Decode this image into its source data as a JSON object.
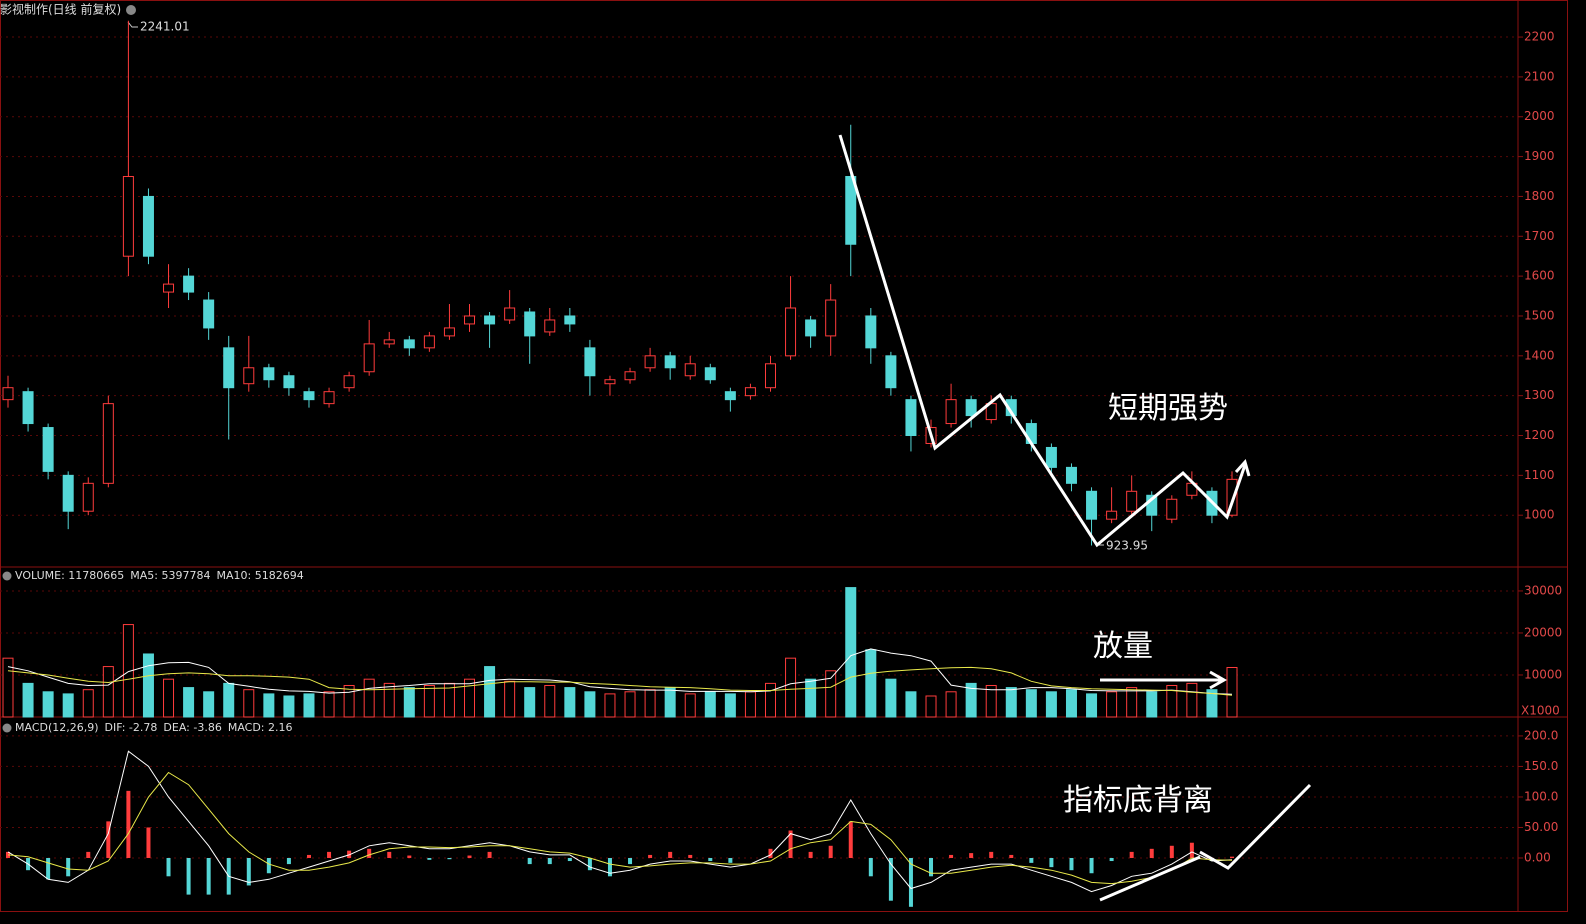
{
  "chart_data": [
    {
      "type": "candlestick",
      "title": "影视制作(日线 前复权)",
      "annotation": "短期强势",
      "up_color": "#ff3c3c",
      "down_color": "#54d6d6",
      "open": [
        1290,
        1310,
        1220,
        1100,
        1010,
        1080,
        1650,
        1800,
        1560,
        1600,
        1540,
        1420,
        1330,
        1370,
        1350,
        1310,
        1280,
        1320,
        1360,
        1430,
        1440,
        1420,
        1450,
        1480,
        1500,
        1490,
        1510,
        1460,
        1500,
        1420,
        1330,
        1340,
        1370,
        1400,
        1350,
        1370,
        1310,
        1300,
        1320,
        1400,
        1490,
        1450,
        1850,
        1500,
        1400,
        1290,
        1180,
        1230,
        1290,
        1240,
        1290,
        1230,
        1170,
        1120,
        1060,
        990,
        1010,
        1050,
        990,
        1050,
        1060,
        1000
      ],
      "high": [
        1350,
        1320,
        1230,
        1110,
        1095,
        1300,
        2241.01,
        1820,
        1630,
        1620,
        1560,
        1450,
        1450,
        1380,
        1360,
        1320,
        1320,
        1360,
        1490,
        1460,
        1450,
        1460,
        1530,
        1530,
        1510,
        1565,
        1520,
        1520,
        1520,
        1440,
        1350,
        1370,
        1420,
        1410,
        1400,
        1380,
        1320,
        1330,
        1400,
        1600,
        1500,
        1580,
        1980,
        1520,
        1410,
        1300,
        1240,
        1330,
        1300,
        1300,
        1300,
        1240,
        1180,
        1130,
        1070,
        1070,
        1100,
        1060,
        1050,
        1110,
        1070,
        1110
      ],
      "low": [
        1270,
        1210,
        1090,
        965,
        1000,
        1070,
        1600,
        1630,
        1520,
        1540,
        1440,
        1190,
        1310,
        1320,
        1300,
        1270,
        1270,
        1310,
        1350,
        1420,
        1400,
        1410,
        1440,
        1460,
        1420,
        1480,
        1380,
        1450,
        1460,
        1300,
        1300,
        1330,
        1360,
        1340,
        1340,
        1330,
        1260,
        1290,
        1310,
        1390,
        1420,
        1400,
        1600,
        1380,
        1300,
        1160,
        1170,
        1220,
        1220,
        1230,
        1230,
        1160,
        1100,
        1060,
        923.95,
        980,
        1000,
        960,
        980,
        1040,
        980,
        995
      ],
      "close": [
        1320,
        1230,
        1110,
        1010,
        1080,
        1280,
        1850,
        1650,
        1580,
        1560,
        1470,
        1320,
        1370,
        1340,
        1320,
        1290,
        1310,
        1350,
        1430,
        1440,
        1420,
        1450,
        1470,
        1500,
        1480,
        1520,
        1450,
        1490,
        1480,
        1350,
        1340,
        1360,
        1400,
        1370,
        1380,
        1340,
        1290,
        1320,
        1380,
        1520,
        1450,
        1540,
        1680,
        1420,
        1320,
        1200,
        1220,
        1290,
        1250,
        1280,
        1250,
        1180,
        1120,
        1080,
        990,
        1010,
        1060,
        1000,
        1040,
        1080,
        1000,
        1090
      ],
      "ylim": [
        870,
        2293
      ],
      "yticks": [
        1000,
        1100,
        1200,
        1300,
        1400,
        1500,
        1600,
        1700,
        1800,
        1900,
        2000,
        2100,
        2200
      ],
      "grid": true
    },
    {
      "type": "volume",
      "annotation": "放量",
      "unit_label": "X1000",
      "legend": [
        {
          "text": "VOLUME: 11780665",
          "color": "#ffffff"
        },
        {
          "text": "MA5: 5397784",
          "color": "#ffffff"
        },
        {
          "text": "MA10: 5182694",
          "color": "#e8e84a"
        }
      ],
      "values": [
        14000,
        8000,
        6000,
        5500,
        6500,
        12000,
        22000,
        15000,
        9000,
        7000,
        6000,
        8000,
        6500,
        5500,
        5000,
        5500,
        6000,
        7500,
        9000,
        8000,
        7000,
        7500,
        8000,
        9000,
        12000,
        8500,
        7000,
        7500,
        7000,
        6000,
        5500,
        6000,
        6500,
        7000,
        5500,
        6000,
        5500,
        6000,
        8000,
        14000,
        9000,
        11000,
        30800,
        16000,
        9000,
        6000,
        5000,
        6000,
        8000,
        7500,
        7000,
        6500,
        6000,
        6500,
        5500,
        6000,
        7000,
        6000,
        7500,
        8000,
        6500,
        11780.665
      ],
      "ma5": [
        12000,
        11000,
        9500,
        8000,
        7500,
        7600,
        10800,
        12200,
        12900,
        13000,
        11800,
        8000,
        7300,
        6600,
        6200,
        6100,
        5700,
        5900,
        6800,
        7200,
        7500,
        7900,
        7900,
        7900,
        8700,
        9000,
        8900,
        8800,
        8400,
        7200,
        6800,
        6500,
        6400,
        6400,
        6100,
        6100,
        6100,
        6000,
        6200,
        7900,
        8500,
        9200,
        14600,
        16200,
        15200,
        14600,
        13300,
        7600,
        6800,
        6500,
        6500,
        7000,
        7000,
        6700,
        6300,
        6200,
        6200,
        6200,
        6400,
        6000,
        5600,
        5397.784
      ],
      "ma10": [
        11000,
        10500,
        10000,
        9200,
        8500,
        8200,
        9000,
        9800,
        10300,
        10500,
        10300,
        9800,
        9800,
        9700,
        9500,
        9000,
        7000,
        6600,
        6500,
        6600,
        6700,
        6800,
        6900,
        7400,
        7900,
        8400,
        8400,
        8300,
        8300,
        8000,
        7800,
        7500,
        7200,
        7100,
        7000,
        6700,
        6400,
        6300,
        6300,
        6600,
        6800,
        7100,
        9500,
        10400,
        10900,
        11200,
        11500,
        11700,
        11800,
        11500,
        10500,
        8500,
        7400,
        7000,
        6700,
        6600,
        6500,
        6400,
        6300,
        5900,
        5600,
        5182.694
      ],
      "ma5_color": "#ffffff",
      "ma10_color": "#e8e84a",
      "ylim": [
        0,
        35700
      ],
      "yticks": [
        10000,
        20000,
        30000
      ],
      "grid": true
    },
    {
      "type": "macd",
      "annotation": "指标底背离",
      "legend": [
        {
          "text": "MACD(12,26,9)",
          "color": "#ffffff"
        },
        {
          "text": "DIF: -2.78",
          "color": "#ffffff"
        },
        {
          "text": "DEA: -3.86",
          "color": "#e8e84a"
        },
        {
          "text": "MACD: 2.16",
          "color": "#e040e0"
        }
      ],
      "dif": [
        10,
        -10,
        -35,
        -40,
        -20,
        40,
        175,
        150,
        100,
        60,
        20,
        -30,
        -40,
        -35,
        -25,
        -15,
        -5,
        5,
        20,
        25,
        20,
        15,
        15,
        20,
        25,
        20,
        10,
        5,
        5,
        -15,
        -25,
        -20,
        -10,
        -5,
        -5,
        -10,
        -15,
        -10,
        5,
        40,
        30,
        40,
        95,
        40,
        -10,
        -50,
        -40,
        -20,
        -15,
        -10,
        -10,
        -20,
        -30,
        -40,
        -55,
        -45,
        -30,
        -25,
        -10,
        10,
        -5,
        -2.78
      ],
      "dea": [
        5,
        2,
        -8,
        -18,
        -20,
        -5,
        40,
        100,
        140,
        120,
        80,
        40,
        10,
        -10,
        -20,
        -20,
        -15,
        -8,
        5,
        15,
        18,
        18,
        17,
        18,
        20,
        20,
        15,
        10,
        8,
        0,
        -10,
        -15,
        -13,
        -10,
        -8,
        -8,
        -10,
        -10,
        -5,
        15,
        25,
        30,
        60,
        55,
        30,
        -10,
        -25,
        -25,
        -20,
        -15,
        -12,
        -15,
        -20,
        -28,
        -40,
        -42,
        -38,
        -32,
        -20,
        0,
        -3,
        -3.86
      ],
      "hist": [
        10,
        -20,
        -35,
        -30,
        10,
        60,
        110,
        50,
        -30,
        -60,
        -60,
        -60,
        -45,
        -25,
        -10,
        5,
        10,
        12,
        15,
        10,
        4,
        -3,
        -2,
        4,
        10,
        0,
        -10,
        -10,
        -5,
        -20,
        -30,
        -10,
        5,
        10,
        5,
        -5,
        -8,
        0,
        15,
        45,
        10,
        20,
        60,
        -30,
        -70,
        -80,
        -30,
        5,
        8,
        10,
        5,
        -8,
        -15,
        -20,
        -25,
        -5,
        10,
        15,
        20,
        25,
        -5,
        2.16
      ],
      "dif_color": "#ffffff",
      "dea_color": "#e8e84a",
      "pos_color": "#ff3c3c",
      "neg_color": "#54d6d6",
      "ylim": [
        -88.5,
        231
      ],
      "yticks": [
        {
          "value": 0,
          "label": "0.00"
        },
        {
          "value": 50,
          "label": "50.00"
        },
        {
          "value": 100,
          "label": "100.0"
        },
        {
          "value": 150,
          "label": "150.0"
        },
        {
          "value": 200,
          "label": "200.0"
        }
      ],
      "grid": true
    }
  ]
}
